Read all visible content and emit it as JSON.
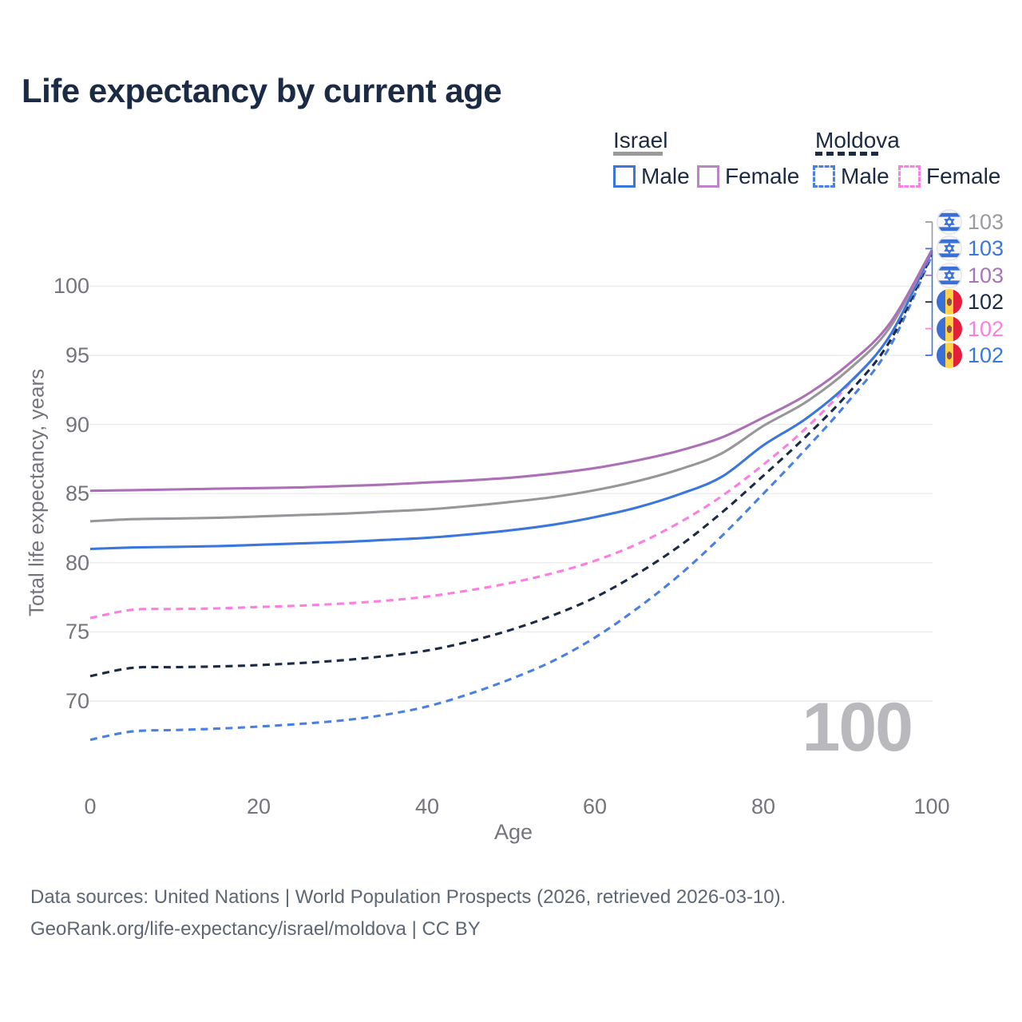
{
  "title": "Life expectancy by current age",
  "watermark_age": "100",
  "legend": {
    "groups": [
      {
        "country": "Israel",
        "line_style": "solid",
        "underline_color": "#9a9a9a",
        "items": [
          {
            "label": "Male",
            "color": "#3b76dd",
            "style": "solid"
          },
          {
            "label": "Female",
            "color": "#bd84c5",
            "style": "solid"
          }
        ]
      },
      {
        "country": "Moldova",
        "line_style": "dashed",
        "underline_color": "#1b2b45",
        "items": [
          {
            "label": "Male",
            "color": "#4a80e2",
            "style": "dashed"
          },
          {
            "label": "Female",
            "color": "#fc7ee0",
            "style": "dashed"
          }
        ]
      }
    ]
  },
  "chart_data": {
    "type": "line",
    "title": "Life expectancy by current age",
    "xlabel": "Age",
    "ylabel": "Total life expectancy, years",
    "x_ticks": [
      0,
      20,
      40,
      60,
      80,
      100
    ],
    "y_ticks": [
      70,
      75,
      80,
      85,
      90,
      95,
      100
    ],
    "xlim": [
      0,
      100
    ],
    "ylim": [
      66,
      104.5
    ],
    "grid": "horizontal",
    "legend_position": "top-right",
    "ages": [
      0,
      5,
      10,
      15,
      20,
      25,
      30,
      35,
      40,
      45,
      50,
      55,
      60,
      65,
      70,
      75,
      80,
      85,
      90,
      95,
      100
    ],
    "series": [
      {
        "name": "Moldova Male",
        "country": "Moldova",
        "sex": "Male",
        "color": "#4a80e2",
        "dash": true,
        "values": [
          67.2,
          67.8,
          67.9,
          68.0,
          68.15,
          68.35,
          68.6,
          69.0,
          69.6,
          70.5,
          71.6,
          72.9,
          74.6,
          76.7,
          79.1,
          81.9,
          85.0,
          88.2,
          91.6,
          95.6,
          102.2
        ]
      },
      {
        "name": "Moldova Total",
        "country": "Moldova",
        "sex": "Both",
        "color": "#1b2b45",
        "dash": true,
        "values": [
          71.8,
          72.4,
          72.45,
          72.5,
          72.6,
          72.75,
          72.95,
          73.25,
          73.65,
          74.3,
          75.15,
          76.2,
          77.5,
          79.2,
          81.2,
          83.6,
          86.3,
          89.1,
          92.2,
          96.0,
          102.3
        ]
      },
      {
        "name": "Moldova Female",
        "country": "Moldova",
        "sex": "Female",
        "color": "#fc7ee0",
        "dash": true,
        "values": [
          76.0,
          76.6,
          76.65,
          76.7,
          76.8,
          76.9,
          77.05,
          77.25,
          77.55,
          78.0,
          78.55,
          79.25,
          80.15,
          81.35,
          82.9,
          84.8,
          87.1,
          89.7,
          92.8,
          96.4,
          102.4
        ]
      },
      {
        "name": "Israel Male",
        "country": "Israel",
        "sex": "Male",
        "color": "#3b76dd",
        "dash": false,
        "values": [
          81.0,
          81.1,
          81.15,
          81.2,
          81.3,
          81.4,
          81.5,
          81.65,
          81.8,
          82.05,
          82.35,
          82.75,
          83.3,
          84.0,
          84.95,
          86.2,
          88.5,
          90.4,
          92.9,
          96.4,
          102.5
        ]
      },
      {
        "name": "Israel Total",
        "country": "Israel",
        "sex": "Both",
        "color": "#97979b",
        "dash": false,
        "values": [
          83.0,
          83.15,
          83.2,
          83.25,
          83.35,
          83.45,
          83.55,
          83.7,
          83.85,
          84.1,
          84.4,
          84.75,
          85.25,
          85.9,
          86.75,
          87.9,
          89.9,
          91.6,
          93.9,
          97.0,
          102.6
        ]
      },
      {
        "name": "Israel Female",
        "country": "Israel",
        "sex": "Female",
        "color": "#ab70b5",
        "dash": false,
        "values": [
          85.2,
          85.25,
          85.3,
          85.35,
          85.4,
          85.45,
          85.55,
          85.65,
          85.8,
          85.95,
          86.15,
          86.45,
          86.85,
          87.4,
          88.1,
          89.05,
          90.5,
          92.1,
          94.3,
          97.3,
          102.6
        ]
      }
    ],
    "end_labels": [
      {
        "flag": "israel-flag-icon",
        "value": "103",
        "color": "#9a9aa0",
        "series": "Israel Total"
      },
      {
        "flag": "israel-flag-icon",
        "value": "103",
        "color": "#3b76dd",
        "series": "Israel Male"
      },
      {
        "flag": "israel-flag-icon",
        "value": "103",
        "color": "#a874b8",
        "series": "Israel Female"
      },
      {
        "flag": "moldova-flag-icon",
        "value": "102",
        "color": "#1b2b45",
        "series": "Moldova Total"
      },
      {
        "flag": "moldova-flag-icon",
        "value": "102",
        "color": "#fc7ee0",
        "series": "Moldova Female"
      },
      {
        "flag": "moldova-flag-icon",
        "value": "102",
        "color": "#3b76dd",
        "series": "Moldova Male"
      }
    ]
  },
  "footer": {
    "line1": "Data sources: United Nations | World Population Prospects (2026, retrieved 2026-03-10).",
    "line2": "GeoRank.org/life-expectancy/israel/moldova | CC BY"
  }
}
